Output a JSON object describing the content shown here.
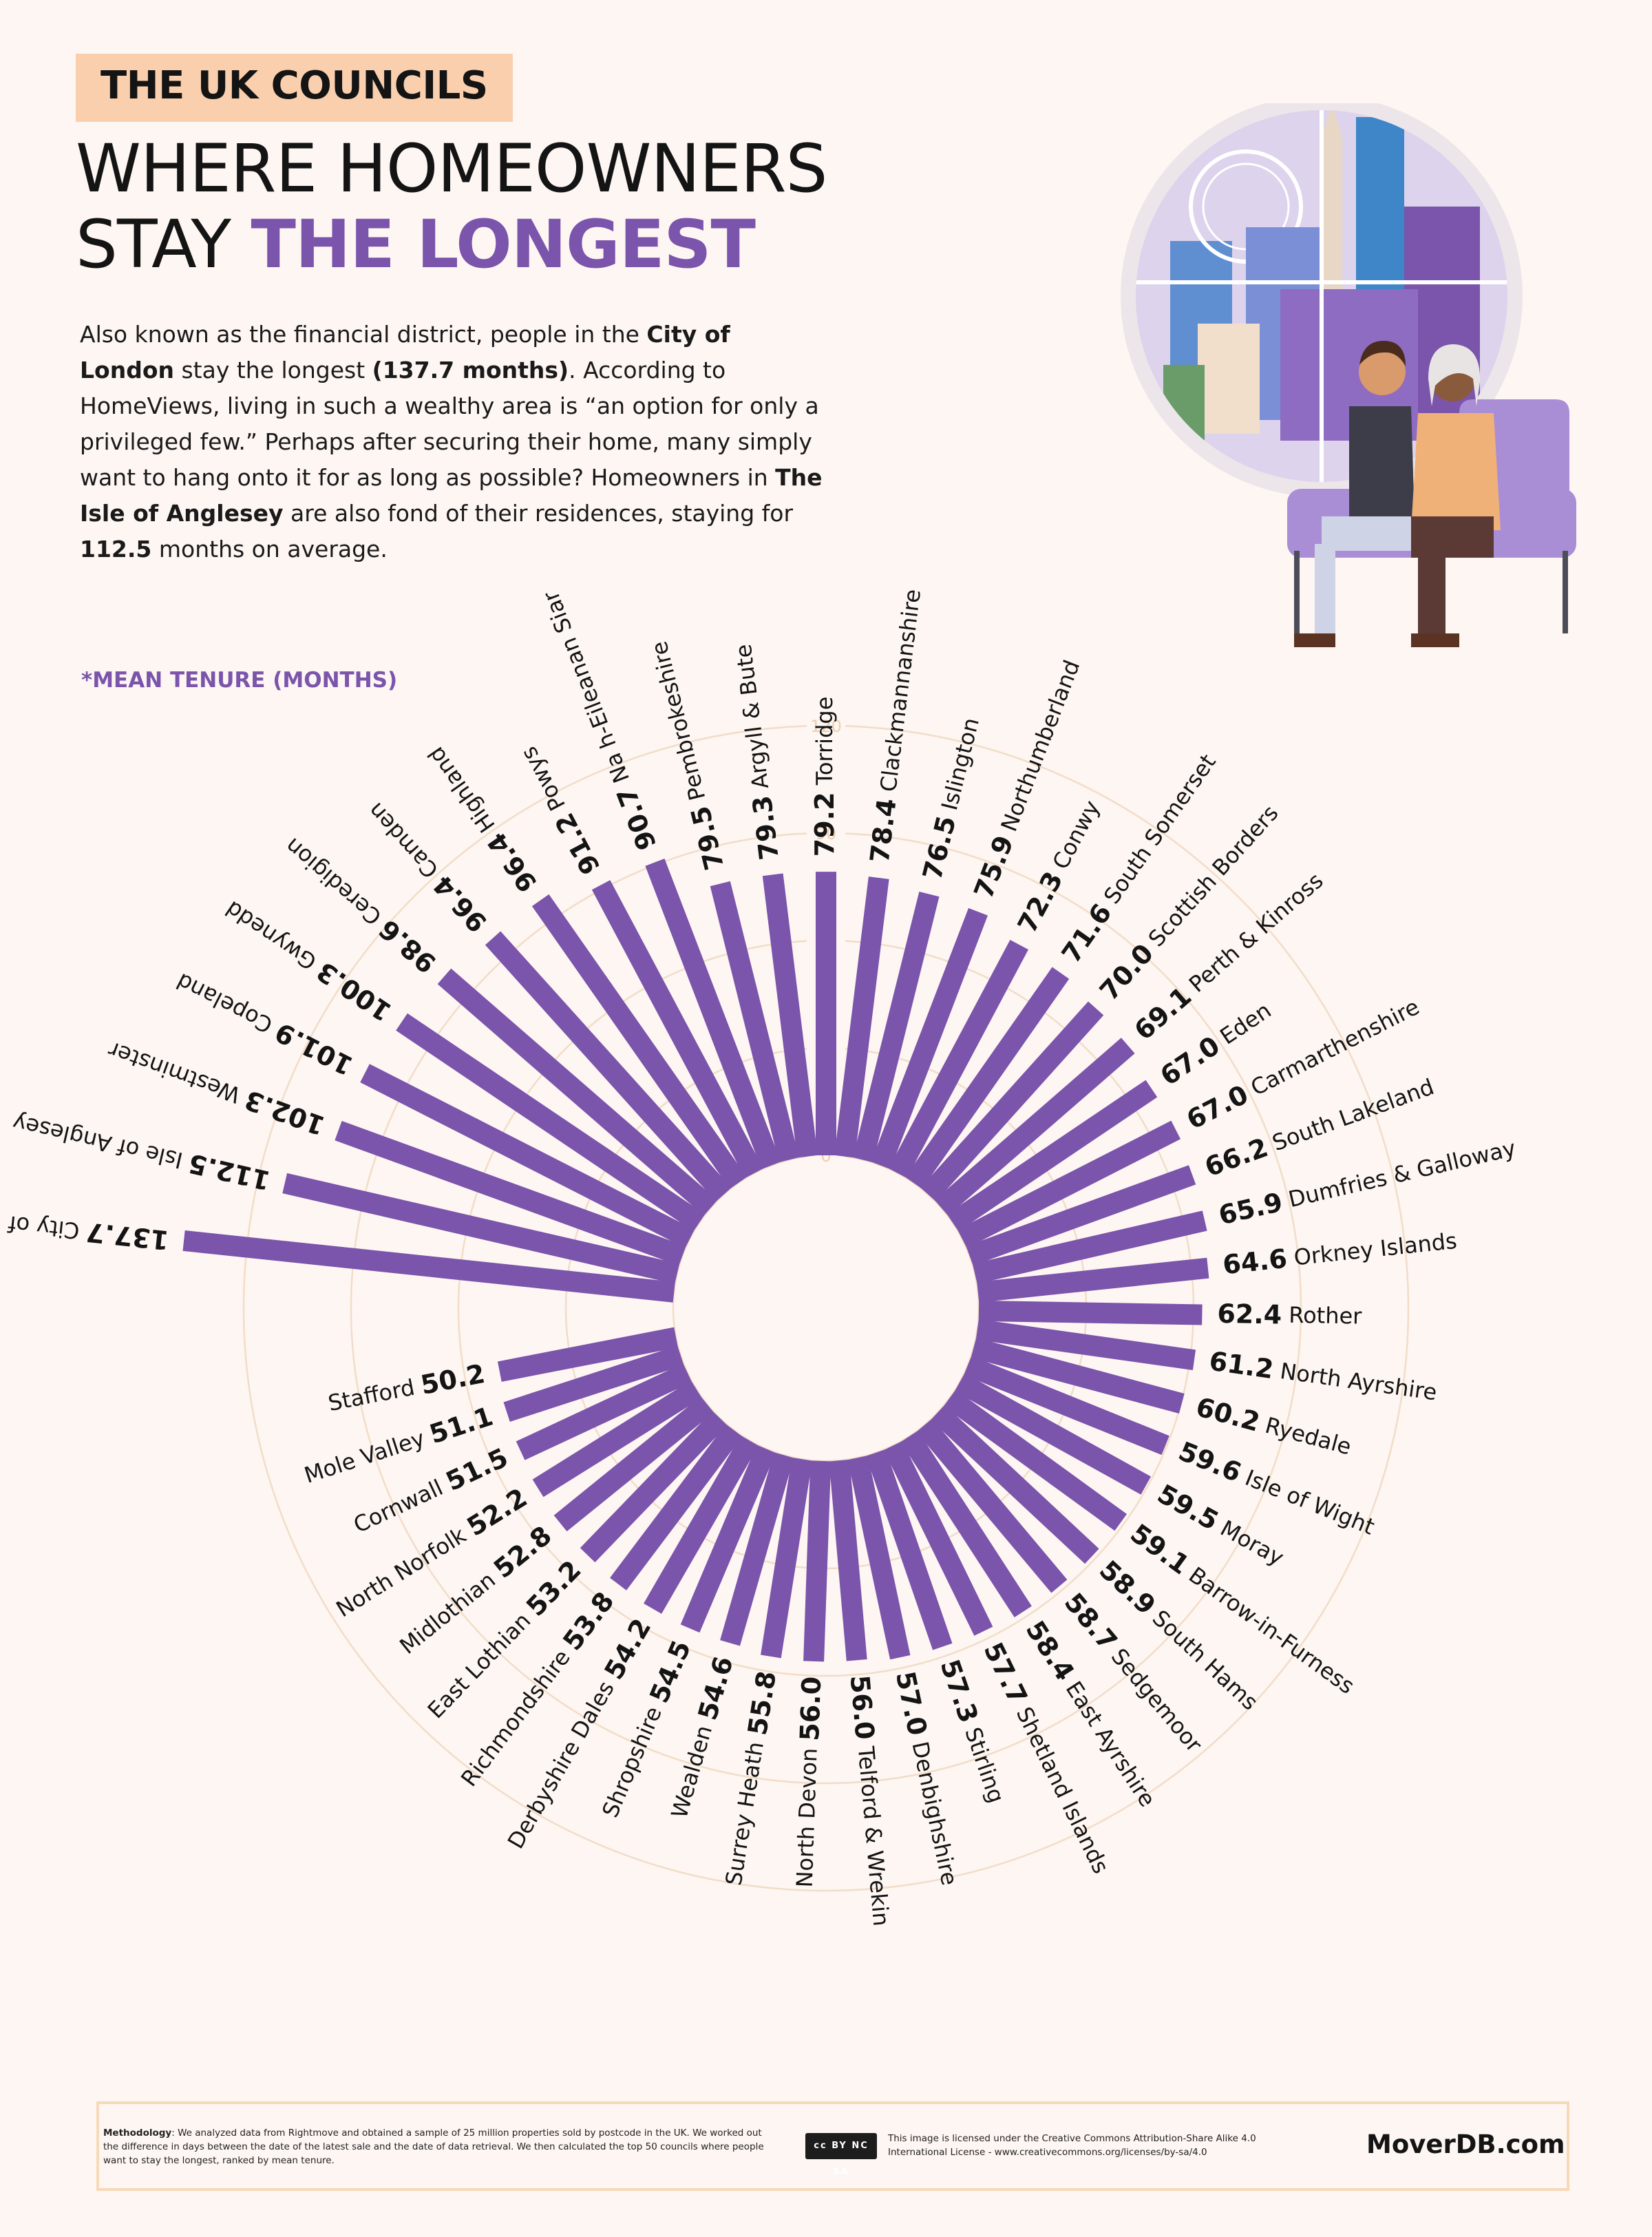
{
  "header": {
    "tag": "THE UK COUNCILS",
    "title_line1": "WHERE HOMEOWNERS",
    "title_line2_plain": "STAY ",
    "title_line2_accent": "THE LONGEST"
  },
  "intro": {
    "p1": "Also known as the financial district, people in the ",
    "b1": "City of London",
    "p2": " stay the longest ",
    "b2": "(137.7 months)",
    "p3": ". According to HomeViews, living in such a wealthy area is “an option for only a privileged few.” Perhaps after securing their home, many simply want to hang onto it for as long as possible? Homeowners in ",
    "b3": "The Isle of Anglesey",
    "p4": " are also fond of their residences, staying for ",
    "b4": "112.5",
    "p5": " months on average."
  },
  "unit_label": "*MEAN TENURE (MONTHS)",
  "colors": {
    "bar": "#7b54ab",
    "accent": "#7b54ab",
    "tag_bg": "#f9cfae",
    "grid": "#f2ddc7",
    "background": "#fdf6f3"
  },
  "chart_data": {
    "type": "bar",
    "layout": "radial",
    "title": "",
    "xlabel": "",
    "ylabel": "*MEAN TENURE (MONTHS)",
    "ylim": [
      0,
      120
    ],
    "grid_ticks": [
      0,
      30,
      60,
      90,
      120
    ],
    "grid": true,
    "legend": "none",
    "categories": [
      "City of London",
      "Isle of Anglesey",
      "Westminster",
      "Copeland",
      "Gwynedd",
      "Ceredigion",
      "Camden",
      "Highland",
      "Powys",
      "Na h-Eileanan Siar",
      "Pembrokeshire",
      "Argyll & Bute",
      "Torridge",
      "Clackmannanshire",
      "Islington",
      "Northumberland",
      "Conwy",
      "South Somerset",
      "Scottish Borders",
      "Perth & Kinross",
      "Eden",
      "Carmarthenshire",
      "South Lakeland",
      "Dumfries & Galloway",
      "Orkney Islands",
      "Rother",
      "North Ayrshire",
      "Ryedale",
      "Isle of Wight",
      "Moray",
      "Barrow-in-Furness",
      "South Hams",
      "Sedgemoor",
      "East Ayrshire",
      "Shetland Islands",
      "Stirling",
      "Denbighshire",
      "Telford & Wrekin",
      "North Devon",
      "Surrey Heath",
      "Wealden",
      "Shropshire",
      "Derbyshire Dales",
      "Richmondshire",
      "East Lothian",
      "Midlothian",
      "North Norfolk",
      "Cornwall",
      "Mole Valley",
      "Stafford"
    ],
    "values": [
      137.7,
      112.5,
      102.3,
      101.9,
      100.3,
      98.6,
      96.4,
      96.4,
      91.2,
      90.7,
      79.5,
      79.3,
      79.2,
      78.4,
      76.5,
      75.9,
      72.3,
      71.6,
      70.0,
      69.1,
      67.0,
      67.0,
      66.2,
      65.9,
      64.6,
      62.4,
      61.2,
      60.2,
      59.6,
      59.5,
      59.1,
      58.9,
      58.7,
      58.4,
      57.7,
      57.3,
      57.0,
      56.0,
      56.0,
      55.8,
      54.6,
      54.5,
      54.2,
      53.8,
      53.2,
      52.8,
      52.2,
      51.5,
      51.1,
      50.2
    ],
    "value_labels": [
      "137.7",
      "112.5",
      "102.3",
      "101.9",
      "100.3",
      "98.6",
      "96.4",
      "96.4",
      "91.2",
      "90.7",
      "79.5",
      "79.3",
      "79.2",
      "78.4",
      "76.5",
      "75.9",
      "72.3",
      "71.6",
      "70.0",
      "69.1",
      "67.0",
      "67.0",
      "66.2",
      "65.9",
      "64.6",
      "62.4",
      "61.2",
      "60.2",
      "59.6",
      "59.5",
      "59.1",
      "58.9",
      "58.7",
      "58.4",
      "57.7",
      "57.3",
      "57.0",
      "56.0",
      "56.0",
      "55.8",
      "54.6",
      "54.5",
      "54.2",
      "53.8",
      "53.2",
      "52.8",
      "52.2",
      "51.5",
      "51.1",
      "50.2"
    ]
  },
  "footer": {
    "method_label": "Methodology",
    "method_text": ": We analyzed data from Rightmove and obtained a sample of 25 million properties sold by postcode in the UK. We worked out the difference in days between the date of the latest sale and the date of data retrieval. We then calculated the top 50 councils where people want to stay the longest, ranked by mean tenure.",
    "cc_badge": "cc BY NC SA",
    "license_text": "This image is licensed under the Creative Commons Attribution-Share Alike 4.0 International License - www.creativecommons.org/licenses/by-sa/4.0",
    "brand": "MoverDB.com"
  }
}
